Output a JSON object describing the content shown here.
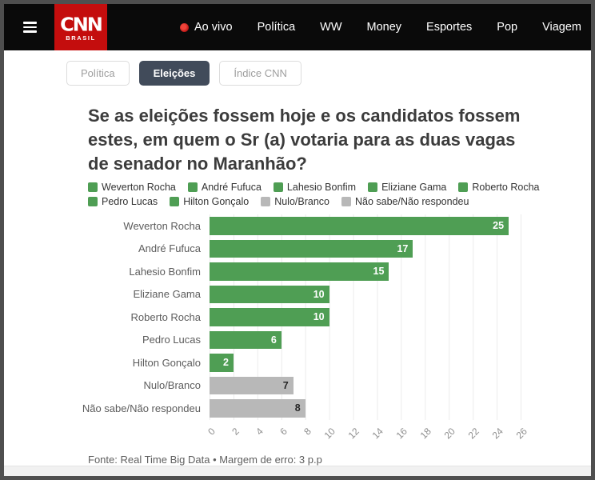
{
  "navbar": {
    "brand": {
      "name": "CNN Brasil",
      "logo_text": "CNN",
      "logo_sub": "BRASIL"
    },
    "live_label": "Ao vivo",
    "items": [
      "Política",
      "WW",
      "Money",
      "Esportes",
      "Pop",
      "Viagem"
    ]
  },
  "tabs": [
    {
      "label": "Política",
      "active": false
    },
    {
      "label": "Eleições",
      "active": true
    },
    {
      "label": "Índice CNN",
      "active": false
    }
  ],
  "headline": "Se as eleições fossem hoje e os candidatos fossem estes, em quem o Sr (a) votaria para as duas vagas de senador no Maranhão?",
  "source_note": "Fonte: Real Time Big Data • Margem de erro: 3 p.p",
  "colors": {
    "green": "#4f9e54",
    "gray": "#b8b8b8",
    "value_on_green": "#ffffff",
    "value_on_gray": "#262626",
    "cnn_red": "#c40d0d",
    "tab_active_bg": "#414b5a",
    "navbar_bg": "#0a0a0a"
  },
  "chart_data": {
    "type": "bar",
    "orientation": "horizontal",
    "categories": [
      "Weverton Rocha",
      "André Fufuca",
      "Lahesio Bonfim",
      "Eliziane Gama",
      "Roberto Rocha",
      "Pedro Lucas",
      "Hilton Gonçalo",
      "Nulo/Branco",
      "Não sabe/Não respondeu"
    ],
    "values": [
      25,
      17,
      15,
      10,
      10,
      6,
      2,
      7,
      8
    ],
    "bar_colors": [
      "green",
      "green",
      "green",
      "green",
      "green",
      "green",
      "green",
      "gray",
      "gray"
    ],
    "xlim": [
      0,
      26
    ],
    "xticks": [
      0,
      2,
      4,
      6,
      8,
      10,
      12,
      14,
      16,
      18,
      20,
      22,
      24,
      26
    ],
    "grid": true,
    "legend_position": "top",
    "legend": [
      {
        "label": "Weverton Rocha",
        "color": "green"
      },
      {
        "label": "André Fufuca",
        "color": "green"
      },
      {
        "label": "Lahesio Bonfim",
        "color": "green"
      },
      {
        "label": "Eliziane Gama",
        "color": "green"
      },
      {
        "label": "Roberto Rocha",
        "color": "green"
      },
      {
        "label": "Pedro Lucas",
        "color": "green"
      },
      {
        "label": "Hilton Gonçalo",
        "color": "green"
      },
      {
        "label": "Nulo/Branco",
        "color": "gray"
      },
      {
        "label": "Não sabe/Não respondeu",
        "color": "gray"
      }
    ]
  }
}
